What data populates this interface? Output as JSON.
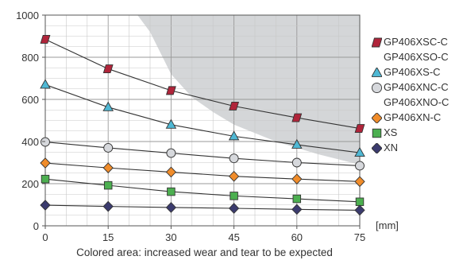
{
  "chart_data": {
    "type": "line",
    "x": [
      0,
      15,
      30,
      45,
      60,
      75
    ],
    "x_unit_label": "[mm]",
    "xlim": [
      0,
      75
    ],
    "ylim": [
      0,
      1000
    ],
    "x_ticks": [
      0,
      15,
      30,
      45,
      60,
      75
    ],
    "y_ticks": [
      0,
      200,
      400,
      600,
      800,
      1000
    ],
    "grid": true,
    "legend_position": "right",
    "caption": "Colored area: increased wear and tear to be expected",
    "shaded_region_boundary": [
      [
        22,
        1000
      ],
      [
        25,
        920
      ],
      [
        30,
        720
      ],
      [
        35,
        610
      ],
      [
        40,
        540
      ],
      [
        45,
        480
      ],
      [
        55,
        400
      ],
      [
        65,
        340
      ],
      [
        75,
        290
      ]
    ],
    "shaded_color": "#d4d6d8",
    "series": [
      {
        "name": "GP406XSC-C",
        "values": [
          885,
          745,
          642,
          568,
          513,
          462
        ],
        "marker": "square-tilted",
        "color": "#b0243a"
      },
      {
        "name": "GP406XSO-C",
        "values": null,
        "marker": "none",
        "color": null
      },
      {
        "name": "GP406XS-C",
        "values": [
          670,
          563,
          480,
          425,
          385,
          347
        ],
        "marker": "triangle",
        "color": "#4fb8d4"
      },
      {
        "name": "GP406XNC-C",
        "values": [
          398,
          370,
          345,
          320,
          300,
          285
        ],
        "marker": "circle",
        "color": "#d6d8dc"
      },
      {
        "name": "GP406XNO-C",
        "values": null,
        "marker": "none",
        "color": null
      },
      {
        "name": "GP406XN-C",
        "values": [
          298,
          275,
          255,
          235,
          222,
          210
        ],
        "marker": "diamond",
        "color": "#f08c2a"
      },
      {
        "name": "XS",
        "values": [
          222,
          192,
          162,
          142,
          128,
          114
        ],
        "marker": "square",
        "color": "#4caf50"
      },
      {
        "name": "XN",
        "values": [
          98,
          92,
          87,
          83,
          78,
          74
        ],
        "marker": "diamond",
        "color": "#3b3b6e"
      }
    ]
  }
}
